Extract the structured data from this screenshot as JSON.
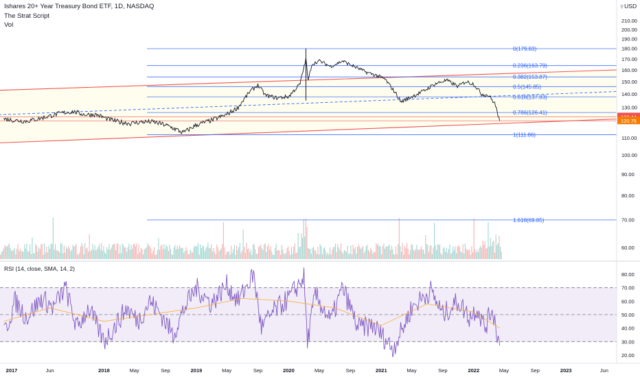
{
  "header": {
    "title": "Ishares 20+ Year Treasury Bond ETF, 1D, NASDAQ",
    "indicator_1": "The Strat Script",
    "indicator_2": "Vol",
    "currency": "USD"
  },
  "colors": {
    "background": "#ffffff",
    "price_line": "#131722",
    "fib_line": "#2962ff",
    "fib_label": "#2962ff",
    "channel_line": "#ef5350",
    "channel_mid": "#2962ff",
    "channel_fill": "#fffde7",
    "volume_up": "#26a69a",
    "volume_down": "#ef5350",
    "rsi_line": "#7e57c2",
    "rsi_ma": "#f9a825",
    "rsi_band": "#ede7f6",
    "axis_text": "#131722",
    "price_badge_current": "#ef5350",
    "price_badge_close": "#f57c00"
  },
  "chart_data": [
    {
      "type": "line",
      "title": "Ishares 20+ Year Treasury Bond ETF, 1D, NASDAQ",
      "x_ticks": [
        "2017",
        "Jun",
        "2018",
        "May",
        "Sep",
        "2019",
        "May",
        "Sep",
        "2020",
        "May",
        "Sep",
        "2021",
        "May",
        "Sep",
        "2022",
        "May",
        "Sep",
        "2023",
        "Jun"
      ],
      "y_ticks": [
        "60.00",
        "70.00",
        "80.00",
        "90.00",
        "100.00",
        "110.00",
        "120.00",
        "130.00",
        "140.00",
        "150.00",
        "160.00",
        "170.00",
        "180.00",
        "190.00",
        "200.00",
        "210.00"
      ],
      "ylim": [
        55,
        215
      ],
      "y_scale": "log",
      "price_badges": [
        {
          "label": "123.44",
          "value": 123.44
        },
        {
          "label": "120.75",
          "value": 120.75
        }
      ],
      "series": [
        {
          "type": "line",
          "x": [
            "2016-12-01",
            "2017-01-15",
            "2017-03-01",
            "2017-04-15",
            "2017-06-01",
            "2017-07-15",
            "2017-09-01",
            "2017-10-15",
            "2017-12-01",
            "2018-01-15",
            "2018-03-01",
            "2018-04-15",
            "2018-06-01",
            "2018-07-15",
            "2018-09-01",
            "2018-10-15",
            "2018-11-10",
            "2019-01-01",
            "2019-03-01",
            "2019-05-01",
            "2019-06-15",
            "2019-08-01",
            "2019-09-01",
            "2019-10-01",
            "2019-11-15",
            "2020-01-01",
            "2020-02-15",
            "2020-03-09",
            "2020-03-18",
            "2020-04-01",
            "2020-05-01",
            "2020-06-15",
            "2020-08-01",
            "2020-09-15",
            "2020-11-01",
            "2020-12-15",
            "2021-01-15",
            "2021-03-01",
            "2021-03-20",
            "2021-05-01",
            "2021-06-15",
            "2021-08-01",
            "2021-09-15",
            "2021-11-01",
            "2021-12-01",
            "2022-01-01",
            "2022-02-01",
            "2022-03-01",
            "2022-03-25",
            "2022-04-14"
          ],
          "values": [
            122,
            121,
            120.5,
            122,
            124,
            126,
            127,
            125,
            125,
            122,
            120,
            119,
            120,
            120,
            118,
            115,
            113,
            118,
            121,
            125,
            130,
            142,
            147,
            139,
            137,
            138,
            148,
            170,
            150,
            165,
            168,
            163,
            168,
            163,
            158,
            155,
            152,
            140,
            134,
            138,
            142,
            148,
            151,
            146,
            150,
            148,
            140,
            139,
            133,
            120.75
          ]
        }
      ],
      "fibonacci_levels": [
        {
          "label": "0(179.83)",
          "value": 179.83
        },
        {
          "label": "0.236(163.79)",
          "value": 163.79
        },
        {
          "label": "0.382(153.87)",
          "value": 153.87
        },
        {
          "label": "0.5(145.85)",
          "value": 145.85
        },
        {
          "label": "0.618(137.83)",
          "value": 137.83
        },
        {
          "label": "0.786(126.41)",
          "value": 126.41
        },
        {
          "label": "1(111.86)",
          "value": 111.86
        },
        {
          "label": "1.618(69.85)",
          "value": 69.85
        }
      ],
      "channel": {
        "upper": {
          "from": [
            "2016-12-01",
            143
          ],
          "to": [
            "2023-08-01",
            160
          ]
        },
        "middle": {
          "from": [
            "2016-12-01",
            125
          ],
          "to": [
            "2023-08-01",
            142
          ]
        },
        "lower": {
          "from": [
            "2016-12-01",
            107
          ],
          "to": [
            "2023-08-01",
            122
          ]
        }
      },
      "volume": {
        "type": "bar",
        "colors_by": "direction"
      }
    },
    {
      "type": "line",
      "title": "RSI (14, close, SMA, 14, 2)",
      "y_ticks": [
        "20.00",
        "30.00",
        "40.00",
        "50.00",
        "60.00",
        "70.00",
        "80.00"
      ],
      "ylim": [
        15,
        90
      ],
      "bands": {
        "upper": 70,
        "middle": 50,
        "lower": 30
      },
      "series": [
        {
          "type": "line",
          "x": [
            "2016-12-01",
            "2017-01-15",
            "2017-03-01",
            "2017-05-01",
            "2017-06-15",
            "2017-08-01",
            "2017-09-15",
            "2017-11-01",
            "2018-01-01",
            "2018-02-15",
            "2018-04-01",
            "2018-05-15",
            "2018-07-01",
            "2018-08-15",
            "2018-10-01",
            "2018-11-15",
            "2019-01-01",
            "2019-03-01",
            "2019-05-01",
            "2019-06-15",
            "2019-08-15",
            "2019-09-15",
            "2019-11-01",
            "2020-01-01",
            "2020-03-01",
            "2020-03-15",
            "2020-04-15",
            "2020-06-15",
            "2020-08-01",
            "2020-10-01",
            "2020-12-01",
            "2021-02-15",
            "2021-03-15",
            "2021-05-01",
            "2021-07-15",
            "2021-09-01",
            "2021-11-01",
            "2021-12-15",
            "2022-01-15",
            "2022-02-15",
            "2022-03-15",
            "2022-04-14"
          ],
          "values": [
            35,
            60,
            48,
            62,
            55,
            70,
            40,
            55,
            30,
            42,
            55,
            45,
            60,
            50,
            35,
            55,
            70,
            58,
            72,
            60,
            80,
            40,
            52,
            62,
            78,
            30,
            65,
            45,
            70,
            40,
            42,
            25,
            35,
            55,
            68,
            50,
            60,
            48,
            55,
            40,
            55,
            27
          ]
        },
        {
          "type": "line",
          "x": [
            "2016-12-01",
            "2017-06-01",
            "2018-01-01",
            "2018-07-01",
            "2019-01-01",
            "2019-07-01",
            "2020-01-01",
            "2020-07-01",
            "2021-01-01",
            "2021-07-01",
            "2022-01-01",
            "2022-04-14"
          ],
          "values": [
            45,
            55,
            45,
            50,
            55,
            62,
            60,
            55,
            42,
            58,
            52,
            40
          ]
        }
      ]
    }
  ]
}
